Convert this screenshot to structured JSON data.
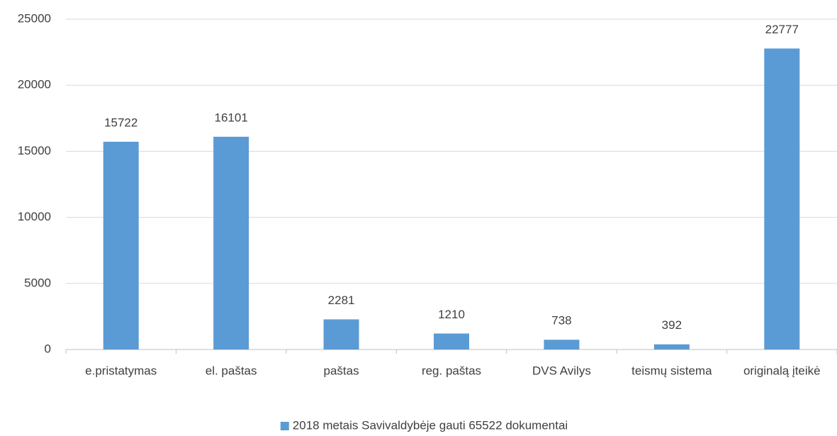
{
  "chart_data": {
    "type": "bar",
    "categories": [
      "e.pristatymas",
      "el. paštas",
      "paštas",
      "reg. paštas",
      "DVS Avilys",
      "teismų sistema",
      "originalą įteikė"
    ],
    "series": [
      {
        "name": "2018 metais Savivaldybėje gauti 65522 dokumentai",
        "color": "#5b9bd5",
        "values": [
          15722,
          16101,
          2281,
          1210,
          738,
          392,
          22777
        ]
      }
    ],
    "ylim": [
      0,
      25000
    ],
    "yticks": [
      0,
      5000,
      10000,
      15000,
      20000,
      25000
    ],
    "grid": true,
    "legend": "bottom"
  }
}
